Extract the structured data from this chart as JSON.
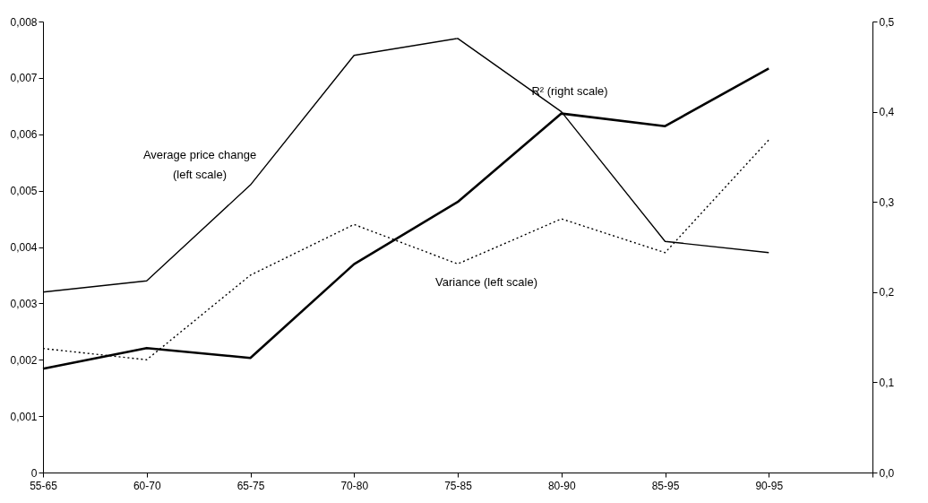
{
  "chart_data": {
    "type": "line",
    "categories": [
      "55-65",
      "60-70",
      "65-75",
      "70-80",
      "75-85",
      "80-90",
      "85-95",
      "90-95",
      null
    ],
    "series": [
      {
        "color": "#000000",
        "line_style": "solid",
        "values": [
          0.0032,
          0.0034,
          0.0051,
          0.0074,
          0.0077,
          0.0064,
          0.0041,
          0.0039,
          null
        ]
      },
      {
        "color": "#000000",
        "line_style": "dotted",
        "values": [
          0.0022,
          0.002,
          0.0035,
          0.0044,
          0.0037,
          0.0045,
          0.0039,
          0.0059,
          null
        ]
      },
      {
        "color": "#000000",
        "line_style": "solid",
        "axis": "y2",
        "values": [
          0.115,
          0.138,
          0.127,
          0.231,
          0.3,
          0.398,
          0.384,
          0.448,
          null
        ]
      }
    ],
    "ylim": [
      0,
      0.008
    ],
    "yticks": [
      0,
      {
        "value": 0.001,
        "label": "0,001"
      },
      {
        "value": 0.002,
        "label": "0,002"
      },
      {
        "value": 0.003,
        "label": "0,003"
      },
      {
        "value": 0.004,
        "label": "0,004"
      },
      {
        "value": 0.005,
        "label": "0,005"
      },
      {
        "value": 0.006,
        "label": "0,006"
      },
      {
        "value": 0.007,
        "label": "0,007"
      },
      {
        "value": 0.008,
        "label": "0,008"
      }
    ],
    "y2lim": [
      0,
      0.5
    ],
    "y2ticks": [
      {
        "value": 0,
        "label": "0,0"
      },
      {
        "value": 0.1,
        "label": "0,1"
      },
      {
        "value": 0.2,
        "label": "0,2"
      },
      {
        "value": 0.3,
        "label": "0,3"
      },
      {
        "value": 0.4,
        "label": "0,4"
      },
      {
        "value": 0.5,
        "label": "0,5"
      }
    ],
    "annotations": [
      "Average price change\n(left scale)",
      "Variance (left scale)",
      "R² (right scale)"
    ],
    "grid": false,
    "marker": "none"
  }
}
